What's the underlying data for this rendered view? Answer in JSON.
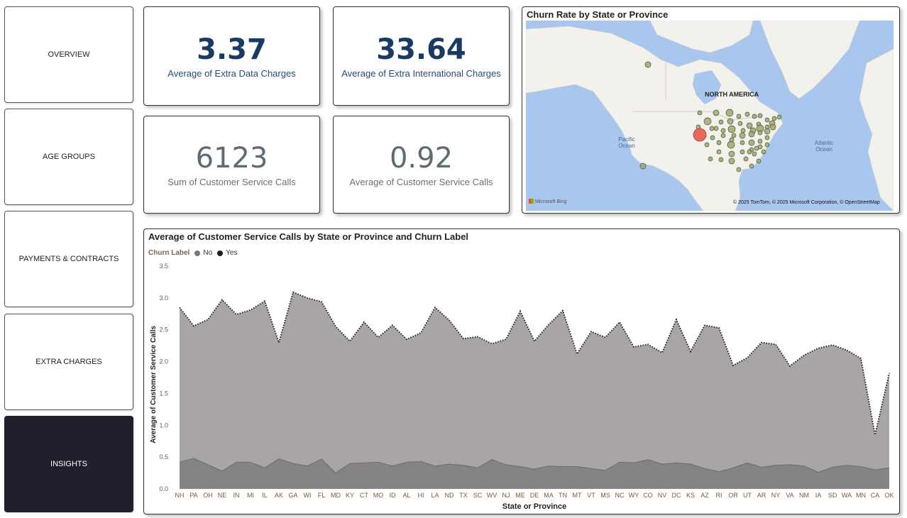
{
  "nav": [
    {
      "label": "OVERVIEW",
      "active": false
    },
    {
      "label": "AGE GROUPS",
      "active": false
    },
    {
      "label": "PAYMENTS & CONTRACTS",
      "active": false
    },
    {
      "label": "EXTRA CHARGES",
      "active": false
    },
    {
      "label": "INSIGHTS",
      "active": true
    }
  ],
  "kpis": {
    "extra_data": {
      "value": "3.37",
      "label": "Average of Extra Data Charges"
    },
    "extra_intl": {
      "value": "33.64",
      "label": "Average of Extra International Charges"
    },
    "sum_calls": {
      "value": "6123",
      "label": "Sum of Customer Service Calls"
    },
    "avg_calls": {
      "value": "0.92",
      "label": "Average of Customer Service Calls"
    }
  },
  "map": {
    "title": "Churn Rate by State or Province",
    "continent_label": "NORTH AMERICA",
    "pacific_label": "Pacific Ocean",
    "atlantic_label": "Atlantic Ocean",
    "provider": "Microsoft Bing",
    "credit": "© 2025 TomTom, © 2025 Microsoft Corporation, © OpenStreetMap",
    "colors": {
      "water": "#a9c6ef",
      "land": "#f3f1ec",
      "bubble": "#9aa874",
      "bubble_high": "#e8675c"
    }
  },
  "chart_data": {
    "type": "area",
    "title": "Average of Customer Service Calls by State or Province and Churn Label",
    "xlabel": "State or Province",
    "ylabel": "Average of Customer Service Calls",
    "legend_title": "Churn Label",
    "ylim": [
      0,
      3.5
    ],
    "yticks": [
      "0.0",
      "0.5",
      "1.0",
      "1.5",
      "2.0",
      "2.5",
      "3.0",
      "3.5"
    ],
    "categories": [
      "NH",
      "PA",
      "OH",
      "NE",
      "IN",
      "MI",
      "IL",
      "AK",
      "GA",
      "WI",
      "FL",
      "MD",
      "KY",
      "CT",
      "MO",
      "ID",
      "AL",
      "HI",
      "LA",
      "ND",
      "TX",
      "SC",
      "WV",
      "NJ",
      "ME",
      "DE",
      "MA",
      "TN",
      "MT",
      "VT",
      "MS",
      "NC",
      "WY",
      "CO",
      "NV",
      "DC",
      "KS",
      "AZ",
      "RI",
      "OR",
      "UT",
      "AR",
      "NY",
      "VA",
      "NM",
      "IA",
      "SD",
      "WA",
      "MN",
      "CA",
      "OK"
    ],
    "series": [
      {
        "name": "No",
        "color": "#777777",
        "values": [
          0.42,
          0.48,
          0.38,
          0.28,
          0.42,
          0.42,
          0.33,
          0.47,
          0.4,
          0.36,
          0.47,
          0.25,
          0.4,
          0.41,
          0.42,
          0.36,
          0.42,
          0.43,
          0.36,
          0.39,
          0.37,
          0.33,
          0.46,
          0.38,
          0.35,
          0.31,
          0.36,
          0.35,
          0.35,
          0.32,
          0.29,
          0.42,
          0.41,
          0.46,
          0.39,
          0.41,
          0.39,
          0.32,
          0.27,
          0.33,
          0.41,
          0.34,
          0.37,
          0.38,
          0.36,
          0.26,
          0.34,
          0.37,
          0.35,
          0.3,
          0.33
        ]
      },
      {
        "name": "Yes",
        "color": "#231f20",
        "values": [
          2.85,
          2.56,
          2.66,
          2.97,
          2.74,
          2.81,
          2.95,
          2.3,
          3.09,
          3.0,
          2.94,
          2.55,
          2.32,
          2.62,
          2.38,
          2.57,
          2.35,
          2.45,
          2.85,
          2.65,
          2.36,
          2.39,
          2.28,
          2.35,
          2.79,
          2.32,
          2.58,
          2.8,
          2.12,
          2.47,
          2.38,
          2.62,
          2.23,
          2.27,
          2.14,
          2.66,
          2.16,
          2.57,
          2.53,
          1.94,
          2.06,
          2.3,
          2.27,
          1.93,
          2.1,
          2.21,
          2.26,
          2.18,
          2.05,
          0.85,
          1.82
        ]
      }
    ]
  }
}
